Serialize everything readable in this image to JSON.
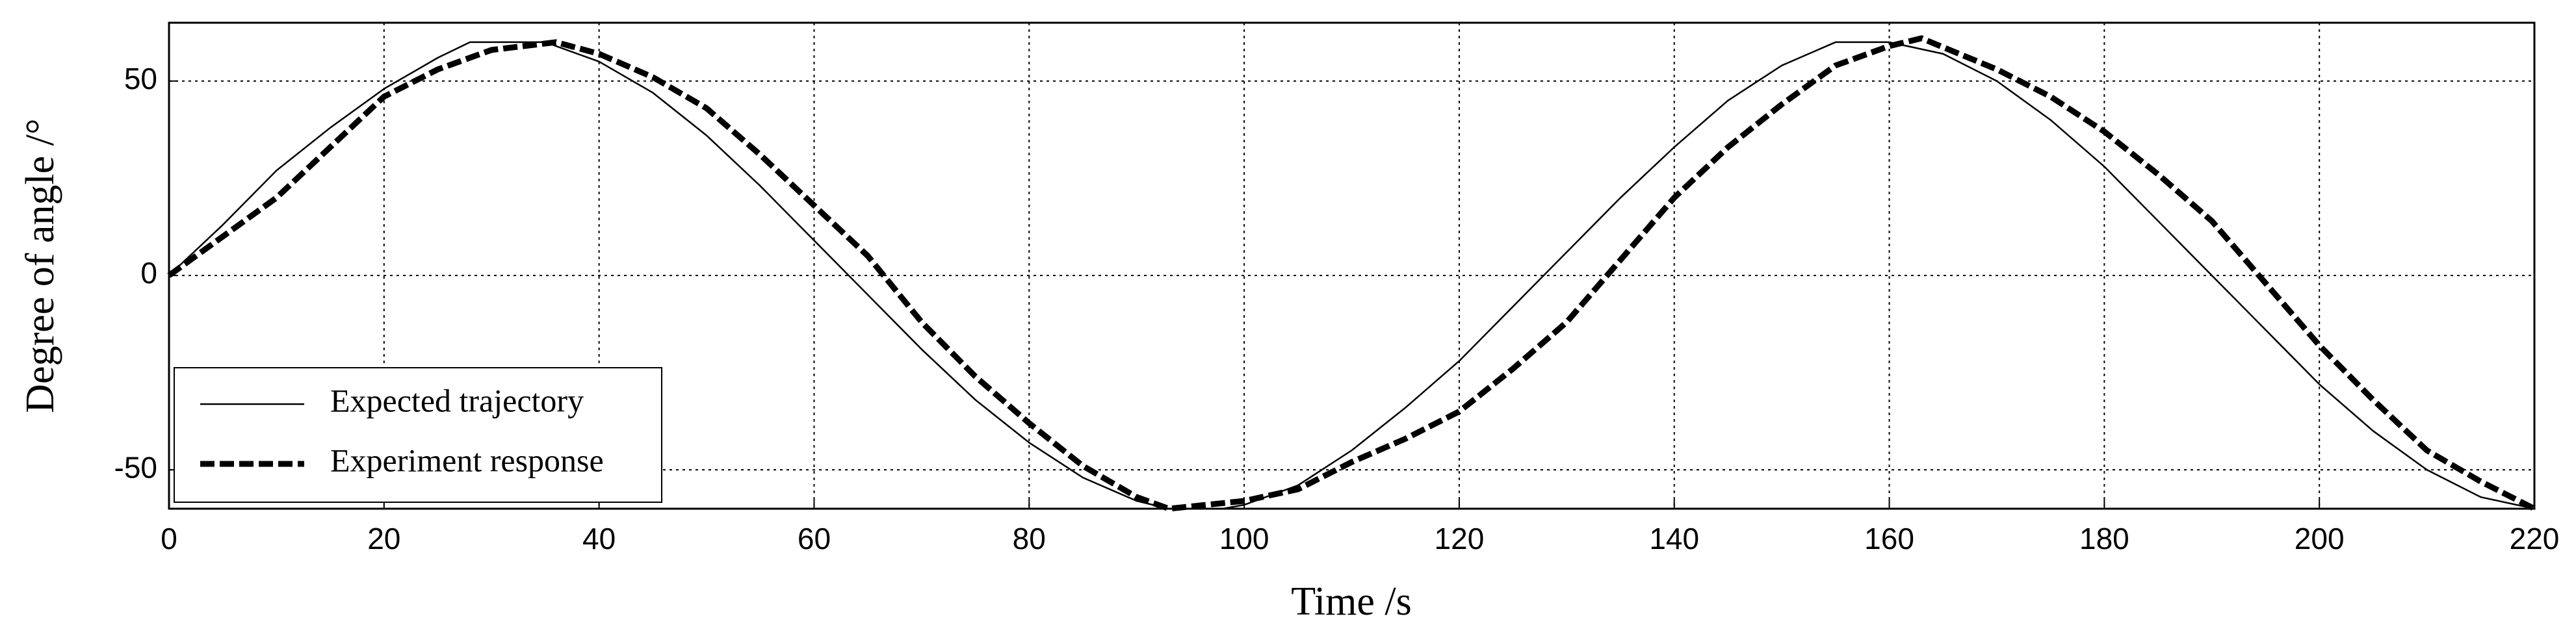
{
  "chart_data": {
    "type": "line",
    "xlabel": "Time /s",
    "ylabel": "Degree of angle /°",
    "xlim": [
      0,
      220
    ],
    "ylim": [
      -60,
      65
    ],
    "xticks": [
      0,
      20,
      40,
      60,
      80,
      100,
      120,
      140,
      160,
      180,
      200,
      220
    ],
    "yticks": [
      -50,
      0,
      50
    ],
    "grid": true,
    "legend": "lower left",
    "series": [
      {
        "name": "Expected trajectory",
        "color": "#000000",
        "style": "solid",
        "x": [
          0,
          5,
          10,
          15,
          20,
          25,
          28,
          35,
          40,
          45,
          50,
          55,
          60,
          65,
          70,
          75,
          80,
          85,
          90,
          93,
          98,
          100,
          105,
          110,
          115,
          120,
          125,
          130,
          135,
          140,
          145,
          150,
          155,
          160,
          165,
          170,
          175,
          180,
          185,
          190,
          195,
          200,
          205,
          210,
          215,
          220
        ],
        "values": [
          0,
          13,
          27,
          38,
          48,
          56,
          60,
          60,
          55,
          47,
          36,
          23,
          9,
          -5,
          -19,
          -32,
          -43,
          -52,
          -58,
          -60,
          -60,
          -59,
          -54,
          -45,
          -34,
          -22,
          -8,
          6,
          20,
          33,
          45,
          54,
          60,
          60,
          57,
          50,
          40,
          28,
          14,
          0,
          -14,
          -28,
          -40,
          -50,
          -57,
          -60
        ]
      },
      {
        "name": "Experiment response",
        "color": "#000000",
        "style": "dashed",
        "x": [
          0,
          5,
          10,
          15,
          20,
          25,
          30,
          36,
          40,
          45,
          50,
          55,
          60,
          65,
          70,
          75,
          80,
          85,
          90,
          93,
          100,
          105,
          110,
          115,
          120,
          125,
          130,
          135,
          140,
          145,
          150,
          155,
          160,
          163,
          170,
          175,
          180,
          185,
          190,
          195,
          200,
          205,
          210,
          215,
          220
        ],
        "values": [
          0,
          10,
          20,
          33,
          46,
          53,
          58,
          60,
          57,
          51,
          43,
          31,
          18,
          5,
          -12,
          -26,
          -38,
          -49,
          -57,
          -60,
          -58,
          -55,
          -48,
          -42,
          -35,
          -24,
          -12,
          4,
          20,
          33,
          44,
          54,
          59,
          61,
          53,
          46,
          37,
          26,
          14,
          -2,
          -18,
          -32,
          -45,
          -53,
          -60
        ]
      }
    ]
  }
}
